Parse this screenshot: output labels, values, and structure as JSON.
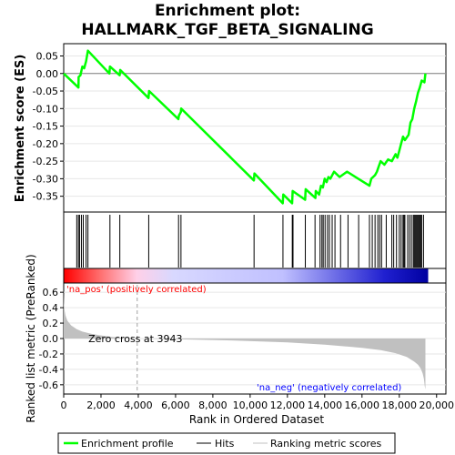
{
  "title_line1": "Enrichment plot:",
  "title_line2": "HALLMARK_TGF_BETA_SIGNALING",
  "colors": {
    "enrichment": "#00ff00",
    "hits": "#000000",
    "metric_fill": "#c0c0c0",
    "pos_label": "#ff0000",
    "neg_label": "#0000ff",
    "zero_line": "#a0a0a0"
  },
  "chart_data": {
    "type": "line",
    "x_range": [
      0,
      20500
    ],
    "n_genes": 19400,
    "xlabel": "Rank in Ordered Dataset",
    "x_ticks": [
      0,
      2000,
      4000,
      6000,
      8000,
      10000,
      12000,
      14000,
      16000,
      18000,
      20000
    ],
    "x_tick_labels": [
      "0",
      "2,000",
      "4,000",
      "6,000",
      "8,000",
      "10,000",
      "12,000",
      "14,000",
      "16,000",
      "18,000",
      "20,000"
    ],
    "es_panel": {
      "ylabel": "Enrichment score (ES)",
      "ylim": [
        -0.395,
        0.085
      ],
      "y_ticks": [
        0.05,
        0.0,
        -0.05,
        -0.1,
        -0.15,
        -0.2,
        -0.25,
        -0.3,
        -0.35
      ],
      "y_tick_labels": [
        "0.05",
        "0.00",
        "-0.05",
        "-0.10",
        "-0.15",
        "-0.20",
        "-0.25",
        "-0.30",
        "-0.35"
      ],
      "series_name": "Enrichment profile",
      "x": [
        0,
        790,
        800,
        900,
        1000,
        1100,
        1200,
        1300,
        2450,
        2480,
        3000,
        3030,
        4550,
        4580,
        6150,
        6180,
        6280,
        6300,
        10200,
        10230,
        11750,
        11780,
        12250,
        12280,
        12950,
        12980,
        13500,
        13520,
        13700,
        13800,
        13900,
        14000,
        14100,
        14200,
        14300,
        14500,
        14800,
        15200,
        15800,
        16400,
        16500,
        16700,
        16800,
        16900,
        17000,
        17200,
        17400,
        17600,
        17800,
        17900,
        18000,
        18100,
        18200,
        18300,
        18500,
        18600,
        18700,
        18800,
        18900,
        19000,
        19100,
        19200,
        19350,
        19400
      ],
      "y": [
        0.0,
        -0.04,
        -0.01,
        -0.005,
        0.02,
        0.015,
        0.035,
        0.065,
        0.0,
        0.02,
        -0.005,
        0.01,
        -0.07,
        -0.05,
        -0.13,
        -0.12,
        -0.11,
        -0.1,
        -0.305,
        -0.285,
        -0.37,
        -0.345,
        -0.37,
        -0.335,
        -0.36,
        -0.33,
        -0.355,
        -0.335,
        -0.345,
        -0.32,
        -0.325,
        -0.3,
        -0.31,
        -0.295,
        -0.3,
        -0.28,
        -0.295,
        -0.28,
        -0.3,
        -0.32,
        -0.3,
        -0.29,
        -0.28,
        -0.265,
        -0.25,
        -0.26,
        -0.245,
        -0.25,
        -0.23,
        -0.24,
        -0.22,
        -0.2,
        -0.18,
        -0.19,
        -0.175,
        -0.14,
        -0.13,
        -0.1,
        -0.08,
        -0.055,
        -0.04,
        -0.02,
        -0.025,
        0.0
      ]
    },
    "hits_series_name": "Hits",
    "hits": [
      700,
      790,
      850,
      950,
      1050,
      1200,
      1300,
      2480,
      3010,
      4560,
      6160,
      6290,
      10210,
      11760,
      12260,
      12300,
      12960,
      13480,
      13750,
      13850,
      13920,
      14020,
      14150,
      14250,
      14400,
      14550,
      14850,
      15250,
      15820,
      16400,
      16550,
      16700,
      16850,
      16950,
      17050,
      17300,
      17600,
      17700,
      17850,
      18000,
      18100,
      18200,
      18250,
      18300,
      18450,
      18550,
      18650,
      18750,
      18800,
      18850,
      18900,
      18950,
      19000,
      19050,
      19100,
      19150,
      19200,
      19300
    ],
    "metric_panel": {
      "ylabel": "Ranked list metric (PreRanked)",
      "ylim": [
        -0.72,
        0.72
      ],
      "y_ticks": [
        0.6,
        0.4,
        0.2,
        0.0,
        -0.2,
        -0.4,
        -0.6
      ],
      "y_tick_labels": [
        "0.6",
        "0.4",
        "0.2",
        "0.0",
        "-0.2",
        "-0.4",
        "-0.6"
      ],
      "series_name": "Ranking metric scores",
      "x": [
        0,
        20,
        50,
        100,
        200,
        400,
        700,
        1000,
        1500,
        2000,
        2600,
        3200,
        3943,
        6000,
        9000,
        12000,
        14000,
        16000,
        17000,
        17800,
        18400,
        18800,
        19000,
        19150,
        19250,
        19320,
        19370,
        19400
      ],
      "y": [
        0.62,
        0.45,
        0.36,
        0.3,
        0.23,
        0.17,
        0.12,
        0.09,
        0.06,
        0.04,
        0.02,
        0.01,
        0.0,
        -0.01,
        -0.025,
        -0.05,
        -0.08,
        -0.12,
        -0.15,
        -0.19,
        -0.24,
        -0.3,
        -0.34,
        -0.39,
        -0.45,
        -0.52,
        -0.62,
        -0.66
      ]
    },
    "zero_cross_label": "Zero cross at 3943",
    "zero_cross": 3943,
    "pos_label": "'na_pos' (positively correlated)",
    "neg_label": "'na_neg' (negatively correlated)",
    "legend": [
      "Enrichment profile",
      "Hits",
      "Ranking metric scores"
    ],
    "legend_placement": "bottom"
  }
}
